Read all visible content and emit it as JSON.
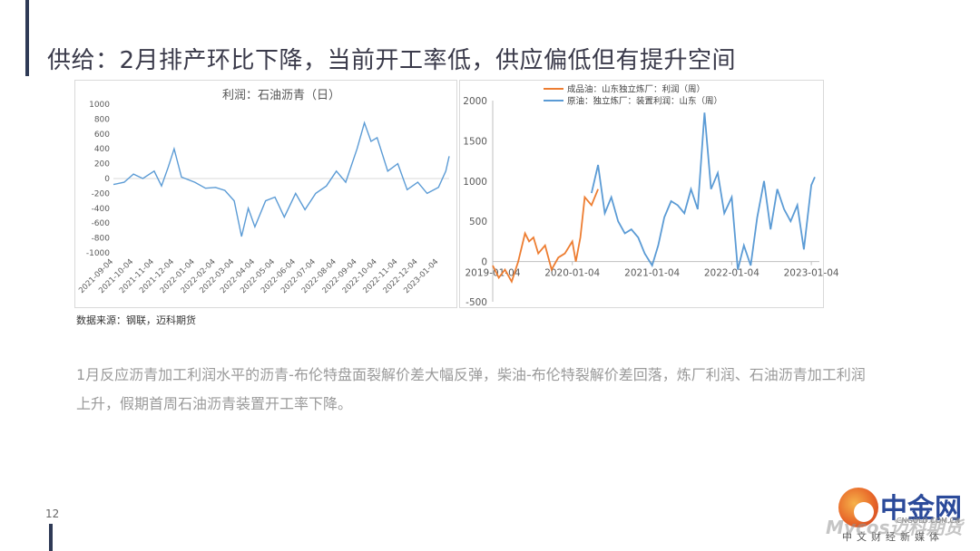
{
  "slide": {
    "title": "供给：2月排产环比下降，当前开工率低，供应偏低但有提升空间",
    "source": "数据来源：钢联，迈科期货",
    "body": "1月反应沥青加工利润水平的沥青-布伦特盘面裂解价差大幅反弹，柴油-布伦特裂解价差回落，炼厂利润、石油沥青加工利润上升，假期首周石油沥青装置开工率下降。",
    "page_number": "12"
  },
  "logo": {
    "name": "中金网",
    "url": "CNGOLD.COM.CN",
    "tagline": "中文财经新媒体",
    "watermark": "Mycos迈科期货"
  },
  "colors": {
    "accent_bar": "#2f3a56",
    "blue": "#5b9bd5",
    "orange": "#ed7d31",
    "grid": "#d9d9d9"
  },
  "chart_data": [
    {
      "type": "line",
      "title": "利润：石油沥青（日）",
      "ylim": [
        -1000,
        1000
      ],
      "yticks": [
        1000,
        800,
        600,
        400,
        200,
        0,
        -200,
        -400,
        -600,
        -800,
        -1000
      ],
      "xlabels": [
        "2021-09-04",
        "2021-10-04",
        "2021-11-04",
        "2021-12-04",
        "2022-01-04",
        "2022-02-04",
        "2022-03-04",
        "2022-04-04",
        "2022-05-04",
        "2022-06-04",
        "2022-07-04",
        "2022-08-04",
        "2022-09-04",
        "2022-10-04",
        "2022-11-04",
        "2022-12-04",
        "2023-01-04"
      ],
      "series": [
        {
          "color": "#5b9bd5",
          "x": [
            "2021-09-04",
            "2021-09-20",
            "2021-10-04",
            "2021-10-18",
            "2021-11-04",
            "2021-11-15",
            "2021-11-25",
            "2021-12-04",
            "2021-12-15",
            "2022-01-04",
            "2022-01-20",
            "2022-02-04",
            "2022-02-18",
            "2022-03-04",
            "2022-03-15",
            "2022-03-25",
            "2022-04-04",
            "2022-04-20",
            "2022-05-04",
            "2022-05-18",
            "2022-06-04",
            "2022-06-18",
            "2022-07-04",
            "2022-07-20",
            "2022-08-04",
            "2022-08-18",
            "2022-09-04",
            "2022-09-15",
            "2022-09-25",
            "2022-10-04",
            "2022-10-20",
            "2022-11-04",
            "2022-11-18",
            "2022-12-04",
            "2022-12-18",
            "2023-01-04",
            "2023-01-15",
            "2023-01-20"
          ],
          "values": [
            -80,
            -50,
            60,
            0,
            100,
            -100,
            150,
            400,
            20,
            -50,
            -130,
            -120,
            -160,
            -300,
            -780,
            -400,
            -650,
            -300,
            -250,
            -520,
            -200,
            -420,
            -200,
            -100,
            100,
            -50,
            400,
            750,
            500,
            550,
            100,
            200,
            -150,
            -50,
            -200,
            -120,
            100,
            300
          ]
        }
      ]
    },
    {
      "type": "line",
      "ylim": [
        -500,
        2000
      ],
      "yticks": [
        2000,
        1500,
        1000,
        500,
        0,
        -500
      ],
      "xlabels": [
        "2019-01-04",
        "2020-01-04",
        "2021-01-04",
        "2022-01-04",
        "2023-01-04"
      ],
      "legend": "top",
      "series": [
        {
          "name": "成品油：山东独立炼厂：利润（周）",
          "color": "#ed7d31",
          "x": [
            "2019-01-04",
            "2019-02-01",
            "2019-03-01",
            "2019-04-01",
            "2019-05-01",
            "2019-06-01",
            "2019-06-20",
            "2019-07-10",
            "2019-08-01",
            "2019-09-01",
            "2019-10-01",
            "2019-11-01",
            "2019-12-01",
            "2020-01-04",
            "2020-01-20",
            "2020-02-10",
            "2020-03-01",
            "2020-04-01",
            "2020-05-01"
          ],
          "values": [
            -50,
            -200,
            -100,
            -250,
            0,
            350,
            250,
            300,
            100,
            200,
            -100,
            50,
            100,
            250,
            0,
            300,
            800,
            700,
            900
          ]
        },
        {
          "name": "原油：独立炼厂：装置利润：山东（周）",
          "color": "#5b9bd5",
          "x": [
            "2020-04-01",
            "2020-05-01",
            "2020-06-01",
            "2020-07-01",
            "2020-08-01",
            "2020-09-01",
            "2020-10-01",
            "2020-11-01",
            "2020-12-01",
            "2021-01-04",
            "2021-02-01",
            "2021-03-01",
            "2021-04-01",
            "2021-05-01",
            "2021-06-01",
            "2021-07-01",
            "2021-08-01",
            "2021-09-01",
            "2021-10-01",
            "2021-11-01",
            "2021-12-01",
            "2022-01-04",
            "2022-02-01",
            "2022-03-01",
            "2022-04-01",
            "2022-05-01",
            "2022-06-01",
            "2022-07-01",
            "2022-08-01",
            "2022-09-01",
            "2022-10-01",
            "2022-11-01",
            "2022-12-01",
            "2023-01-04",
            "2023-01-20"
          ],
          "values": [
            850,
            1200,
            600,
            800,
            500,
            350,
            400,
            300,
            100,
            -50,
            200,
            550,
            750,
            700,
            600,
            900,
            650,
            1850,
            900,
            1100,
            600,
            800,
            -100,
            200,
            -50,
            550,
            1000,
            400,
            900,
            650,
            500,
            700,
            150,
            950,
            1050
          ]
        }
      ]
    }
  ]
}
